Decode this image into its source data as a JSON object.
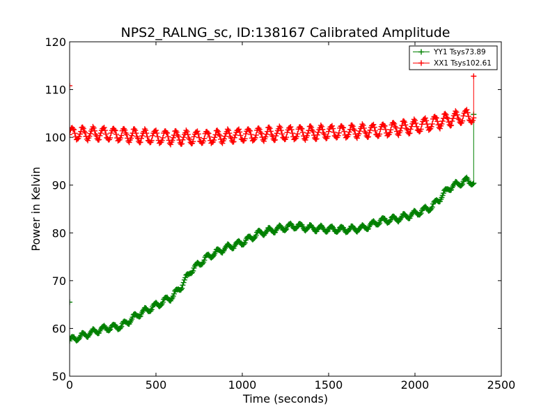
{
  "chart_data": {
    "type": "line",
    "title": "NPS2_RALNG_sc, ID:138167 Calibrated Amplitude",
    "xlabel": "Time (seconds)",
    "ylabel": "Power in Kelvin",
    "xlim": [
      0,
      2500
    ],
    "ylim": [
      50,
      120
    ],
    "xticks": [
      0,
      500,
      1000,
      1500,
      2000,
      2500
    ],
    "yticks": [
      50,
      60,
      70,
      80,
      90,
      100,
      110,
      120
    ],
    "xtick_labels": [
      "0",
      "500",
      "1000",
      "1500",
      "2000",
      "2500"
    ],
    "ytick_labels": [
      "50",
      "60",
      "70",
      "80",
      "90",
      "100",
      "110",
      "120"
    ],
    "grid": false,
    "legend_position": "top-right",
    "marker": "+",
    "series": [
      {
        "name": "YY1 Tsys73.89",
        "color": "#008000",
        "start_point": {
          "x": 0,
          "y": 65.5
        },
        "end_spike": {
          "x": 2340,
          "y": 104.8
        },
        "x": [
          0,
          100,
          200,
          300,
          400,
          500,
          600,
          650,
          700,
          800,
          900,
          1000,
          1100,
          1200,
          1300,
          1400,
          1500,
          1600,
          1700,
          1800,
          1900,
          2000,
          2100,
          2200,
          2300,
          2340
        ],
        "y": [
          57.5,
          58.8,
          60.0,
          60.5,
          63.0,
          64.8,
          66.8,
          69.0,
          72.0,
          75.0,
          76.8,
          78.0,
          80.0,
          80.8,
          81.5,
          81.0,
          80.8,
          80.7,
          81.0,
          82.5,
          83.0,
          84.0,
          85.5,
          89.5,
          91.0,
          90.5
        ],
        "oscillation_amplitude": 0.6,
        "oscillation_period": 60
      },
      {
        "name": "XX1 Tsys102.61",
        "color": "#ff0000",
        "start_point": {
          "x": 0,
          "y": 110.8
        },
        "end_spike": {
          "x": 2340,
          "y": 112.8
        },
        "x": [
          0,
          200,
          400,
          600,
          800,
          1000,
          1200,
          1400,
          1600,
          1800,
          2000,
          2100,
          2200,
          2300,
          2340
        ],
        "y": [
          100.8,
          100.8,
          100.3,
          100.0,
          100.0,
          100.5,
          100.8,
          101.0,
          101.2,
          101.5,
          102.3,
          103.0,
          103.8,
          104.5,
          104.3
        ],
        "oscillation_amplitude": 1.3,
        "oscillation_period": 60
      }
    ]
  }
}
